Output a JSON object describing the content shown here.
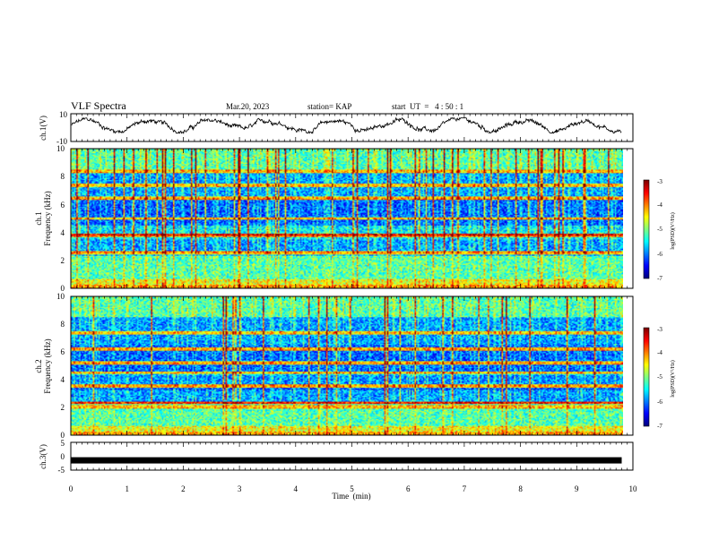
{
  "header": {
    "title": "VLF Spectra",
    "date": "Mar.20, 2023",
    "station": "station= KAP",
    "start_ut": "start  UT  =   4 : 50 : 1"
  },
  "chart_data": [
    {
      "type": "line",
      "ylabel": "ch.1(V)",
      "ylim": [
        -10,
        10
      ],
      "yticks": [
        "10",
        "-10"
      ],
      "xlim": [
        0,
        10
      ],
      "note": "noisy waveform fluctuating roughly between -3 and 6 V over 0–9.8 min"
    },
    {
      "type": "heatmap",
      "panel": "ch.1",
      "ylabel_top": "ch.1",
      "ylabel": "Frequency (kHz)",
      "ylim": [
        0,
        10
      ],
      "yticks": [
        "0",
        "2",
        "4",
        "6",
        "8",
        "10"
      ],
      "xlim": [
        0,
        10
      ],
      "data_extent_min": 9.8,
      "colorbar": {
        "label": "log(PSD)(V²/Hz)",
        "range": [
          -7,
          -3
        ],
        "ticks": [
          "-3",
          "-4",
          "-5",
          "-6",
          "-7"
        ]
      }
    },
    {
      "type": "heatmap",
      "panel": "ch.2",
      "ylabel_top": "ch.2",
      "ylabel": "Frequency (kHz)",
      "ylim": [
        0,
        10
      ],
      "yticks": [
        "0",
        "2",
        "4",
        "6",
        "8",
        "10"
      ],
      "xlim": [
        0,
        10
      ],
      "data_extent_min": 9.8,
      "colorbar": {
        "label": "log(PSD)(V²/Hz)",
        "range": [
          -7,
          -3
        ],
        "ticks": [
          "-3",
          "-4",
          "-5",
          "-6",
          "-7"
        ]
      }
    },
    {
      "type": "line",
      "ylabel": "ch.3(V)",
      "ylim": [
        -5,
        5
      ],
      "yticks": [
        "5",
        "0",
        "-5"
      ],
      "xlim": [
        0,
        10
      ],
      "values_constant": -1.5,
      "xlabel": "Time  (min)",
      "xticks": [
        "0",
        "1",
        "2",
        "3",
        "4",
        "5",
        "6",
        "7",
        "8",
        "9",
        "10"
      ]
    }
  ]
}
